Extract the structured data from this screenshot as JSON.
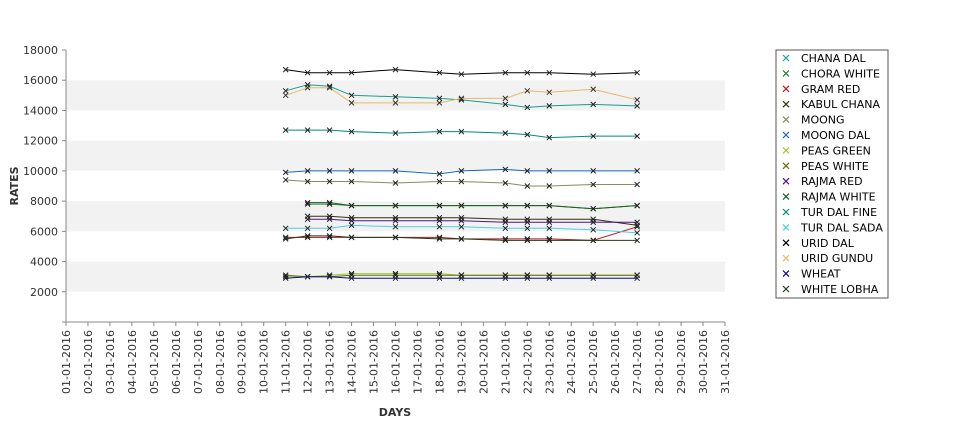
{
  "chart_data": {
    "type": "line",
    "title": "",
    "xlabel": "DAYS",
    "ylabel": "RATES",
    "ylim": [
      0,
      18000
    ],
    "yticks": [
      2000,
      4000,
      6000,
      8000,
      10000,
      12000,
      14000,
      16000,
      18000
    ],
    "grid": "alternating horizontal bands",
    "legend_position": "right",
    "x_labels": [
      "01-01-2016",
      "02-01-2016",
      "03-01-2016",
      "04-01-2016",
      "05-01-2016",
      "06-01-2016",
      "07-01-2016",
      "08-01-2016",
      "09-01-2016",
      "10-01-2016",
      "11-01-2016",
      "12-01-2016",
      "13-01-2016",
      "14-01-2016",
      "15-01-2016",
      "16-01-2016",
      "17-01-2016",
      "18-01-2016",
      "19-01-2016",
      "20-01-2016",
      "21-01-2016",
      "22-01-2016",
      "23-01-2016",
      "24-01-2016",
      "25-01-2016",
      "26-01-2016",
      "27-01-2016",
      "28-01-2016",
      "29-01-2016",
      "30-01-2016",
      "31-01-2016"
    ],
    "series": [
      {
        "name": "CHANA DAL",
        "color": "#1a9e8f",
        "x": [
          "11-01-2016",
          "12-01-2016",
          "13-01-2016",
          "14-01-2016",
          "16-01-2016",
          "18-01-2016",
          "19-01-2016",
          "21-01-2016",
          "22-01-2016",
          "23-01-2016",
          "25-01-2016",
          "27-01-2016"
        ],
        "values": [
          15300,
          15700,
          15600,
          15000,
          14900,
          14800,
          14700,
          14400,
          14200,
          14300,
          14400,
          14300
        ]
      },
      {
        "name": "CHORA WHITE",
        "color": "#2e7d32",
        "x": [
          "12-01-2016",
          "13-01-2016",
          "14-01-2016",
          "16-01-2016",
          "18-01-2016",
          "19-01-2016",
          "21-01-2016",
          "22-01-2016",
          "23-01-2016",
          "25-01-2016",
          "27-01-2016"
        ],
        "values": [
          7800,
          7800,
          7700,
          7700,
          7700,
          7700,
          7700,
          7700,
          7700,
          7500,
          7700
        ]
      },
      {
        "name": "GRAM RED",
        "color": "#b71c1c",
        "x": [
          "11-01-2016",
          "12-01-2016",
          "13-01-2016",
          "14-01-2016",
          "16-01-2016",
          "18-01-2016",
          "19-01-2016",
          "21-01-2016",
          "22-01-2016",
          "23-01-2016",
          "25-01-2016",
          "27-01-2016"
        ],
        "values": [
          5600,
          5600,
          5600,
          5600,
          5600,
          5600,
          5500,
          5500,
          5500,
          5500,
          5400,
          6300
        ]
      },
      {
        "name": "KABUL CHANA",
        "color": "#333300",
        "x": [
          "12-01-2016",
          "13-01-2016",
          "14-01-2016",
          "16-01-2016",
          "18-01-2016",
          "19-01-2016",
          "21-01-2016",
          "22-01-2016",
          "23-01-2016",
          "25-01-2016",
          "27-01-2016"
        ],
        "values": [
          7000,
          7000,
          6900,
          6900,
          6900,
          6900,
          6800,
          6800,
          6800,
          6800,
          6400
        ]
      },
      {
        "name": "MOONG",
        "color": "#8a8a5c",
        "x": [
          "11-01-2016",
          "12-01-2016",
          "13-01-2016",
          "14-01-2016",
          "16-01-2016",
          "18-01-2016",
          "19-01-2016",
          "21-01-2016",
          "22-01-2016",
          "23-01-2016",
          "25-01-2016",
          "27-01-2016"
        ],
        "values": [
          9400,
          9300,
          9300,
          9300,
          9200,
          9300,
          9300,
          9200,
          9000,
          9000,
          9100,
          9100
        ]
      },
      {
        "name": "MOONG DAL",
        "color": "#1565c0",
        "x": [
          "11-01-2016",
          "12-01-2016",
          "13-01-2016",
          "14-01-2016",
          "16-01-2016",
          "18-01-2016",
          "19-01-2016",
          "21-01-2016",
          "22-01-2016",
          "23-01-2016",
          "25-01-2016",
          "27-01-2016"
        ],
        "values": [
          9900,
          10000,
          10000,
          10000,
          10000,
          9800,
          10000,
          10100,
          10000,
          10000,
          10000,
          10000
        ]
      },
      {
        "name": "PEAS GREEN",
        "color": "#9ccc3a",
        "x": [
          "11-01-2016",
          "12-01-2016",
          "13-01-2016",
          "14-01-2016",
          "16-01-2016",
          "18-01-2016",
          "19-01-2016",
          "21-01-2016",
          "22-01-2016",
          "23-01-2016",
          "25-01-2016",
          "27-01-2016"
        ],
        "values": [
          3000,
          3000,
          3100,
          3200,
          3200,
          3200,
          3100,
          3100,
          3100,
          3100,
          3100,
          3100
        ]
      },
      {
        "name": "PEAS WHITE",
        "color": "#6b6b00",
        "x": [
          "11-01-2016",
          "12-01-2016",
          "13-01-2016",
          "14-01-2016",
          "16-01-2016",
          "18-01-2016",
          "19-01-2016",
          "21-01-2016",
          "22-01-2016",
          "23-01-2016",
          "25-01-2016",
          "27-01-2016"
        ],
        "values": [
          3100,
          3000,
          3000,
          3100,
          3100,
          3100,
          3100,
          3100,
          3100,
          3100,
          3100,
          3100
        ]
      },
      {
        "name": "RAJMA RED",
        "color": "#4a148c",
        "x": [
          "12-01-2016",
          "13-01-2016",
          "14-01-2016",
          "16-01-2016",
          "18-01-2016",
          "19-01-2016",
          "21-01-2016",
          "22-01-2016",
          "23-01-2016",
          "25-01-2016",
          "27-01-2016"
        ],
        "values": [
          6800,
          6800,
          6700,
          6700,
          6700,
          6700,
          6600,
          6600,
          6600,
          6600,
          6600
        ]
      },
      {
        "name": "RAJMA WHITE",
        "color": "#1b5e20",
        "x": [
          "12-01-2016",
          "13-01-2016",
          "14-01-2016",
          "16-01-2016",
          "18-01-2016",
          "19-01-2016",
          "21-01-2016",
          "22-01-2016",
          "23-01-2016",
          "25-01-2016",
          "27-01-2016"
        ],
        "values": [
          7900,
          7900,
          7700,
          7700,
          7700,
          7700,
          7700,
          7700,
          7700,
          7500,
          7700
        ]
      },
      {
        "name": "TUR DAL FINE",
        "color": "#00897b",
        "x": [
          "11-01-2016",
          "12-01-2016",
          "13-01-2016",
          "14-01-2016",
          "16-01-2016",
          "18-01-2016",
          "19-01-2016",
          "21-01-2016",
          "22-01-2016",
          "23-01-2016",
          "25-01-2016",
          "27-01-2016"
        ],
        "values": [
          12700,
          12700,
          12700,
          12600,
          12500,
          12600,
          12600,
          12500,
          12400,
          12200,
          12300,
          12300
        ]
      },
      {
        "name": "TUR DAL SADA",
        "color": "#4dd0e1",
        "x": [
          "11-01-2016",
          "12-01-2016",
          "13-01-2016",
          "14-01-2016",
          "16-01-2016",
          "18-01-2016",
          "19-01-2016",
          "21-01-2016",
          "22-01-2016",
          "23-01-2016",
          "25-01-2016",
          "27-01-2016"
        ],
        "values": [
          6200,
          6200,
          6200,
          6400,
          6300,
          6300,
          6300,
          6200,
          6200,
          6200,
          6100,
          5900
        ]
      },
      {
        "name": "URID DAL",
        "color": "#000000",
        "x": [
          "11-01-2016",
          "12-01-2016",
          "13-01-2016",
          "14-01-2016",
          "16-01-2016",
          "18-01-2016",
          "19-01-2016",
          "21-01-2016",
          "22-01-2016",
          "23-01-2016",
          "25-01-2016",
          "27-01-2016"
        ],
        "values": [
          16700,
          16500,
          16500,
          16500,
          16700,
          16500,
          16400,
          16500,
          16500,
          16500,
          16400,
          16500
        ]
      },
      {
        "name": "URID GUNDU",
        "color": "#e6b86a",
        "x": [
          "11-01-2016",
          "12-01-2016",
          "13-01-2016",
          "14-01-2016",
          "16-01-2016",
          "18-01-2016",
          "19-01-2016",
          "21-01-2016",
          "22-01-2016",
          "23-01-2016",
          "25-01-2016",
          "27-01-2016"
        ],
        "values": [
          15000,
          15500,
          15500,
          14500,
          14500,
          14500,
          14800,
          14800,
          15300,
          15200,
          15400,
          14700
        ]
      },
      {
        "name": "WHEAT",
        "color": "#0d0d8a",
        "x": [
          "11-01-2016",
          "12-01-2016",
          "13-01-2016",
          "14-01-2016",
          "16-01-2016",
          "18-01-2016",
          "19-01-2016",
          "21-01-2016",
          "22-01-2016",
          "23-01-2016",
          "25-01-2016",
          "27-01-2016"
        ],
        "values": [
          2900,
          3000,
          3000,
          2900,
          2900,
          2900,
          2900,
          2900,
          2900,
          2900,
          2900,
          2900
        ]
      },
      {
        "name": "WHITE LOBHA",
        "color": "#1e3d1e",
        "x": [
          "11-01-2016",
          "12-01-2016",
          "13-01-2016",
          "14-01-2016",
          "16-01-2016",
          "18-01-2016",
          "19-01-2016",
          "21-01-2016",
          "22-01-2016",
          "23-01-2016",
          "25-01-2016",
          "27-01-2016"
        ],
        "values": [
          5500,
          5700,
          5700,
          5600,
          5600,
          5500,
          5500,
          5400,
          5400,
          5400,
          5400,
          5400
        ]
      }
    ]
  }
}
